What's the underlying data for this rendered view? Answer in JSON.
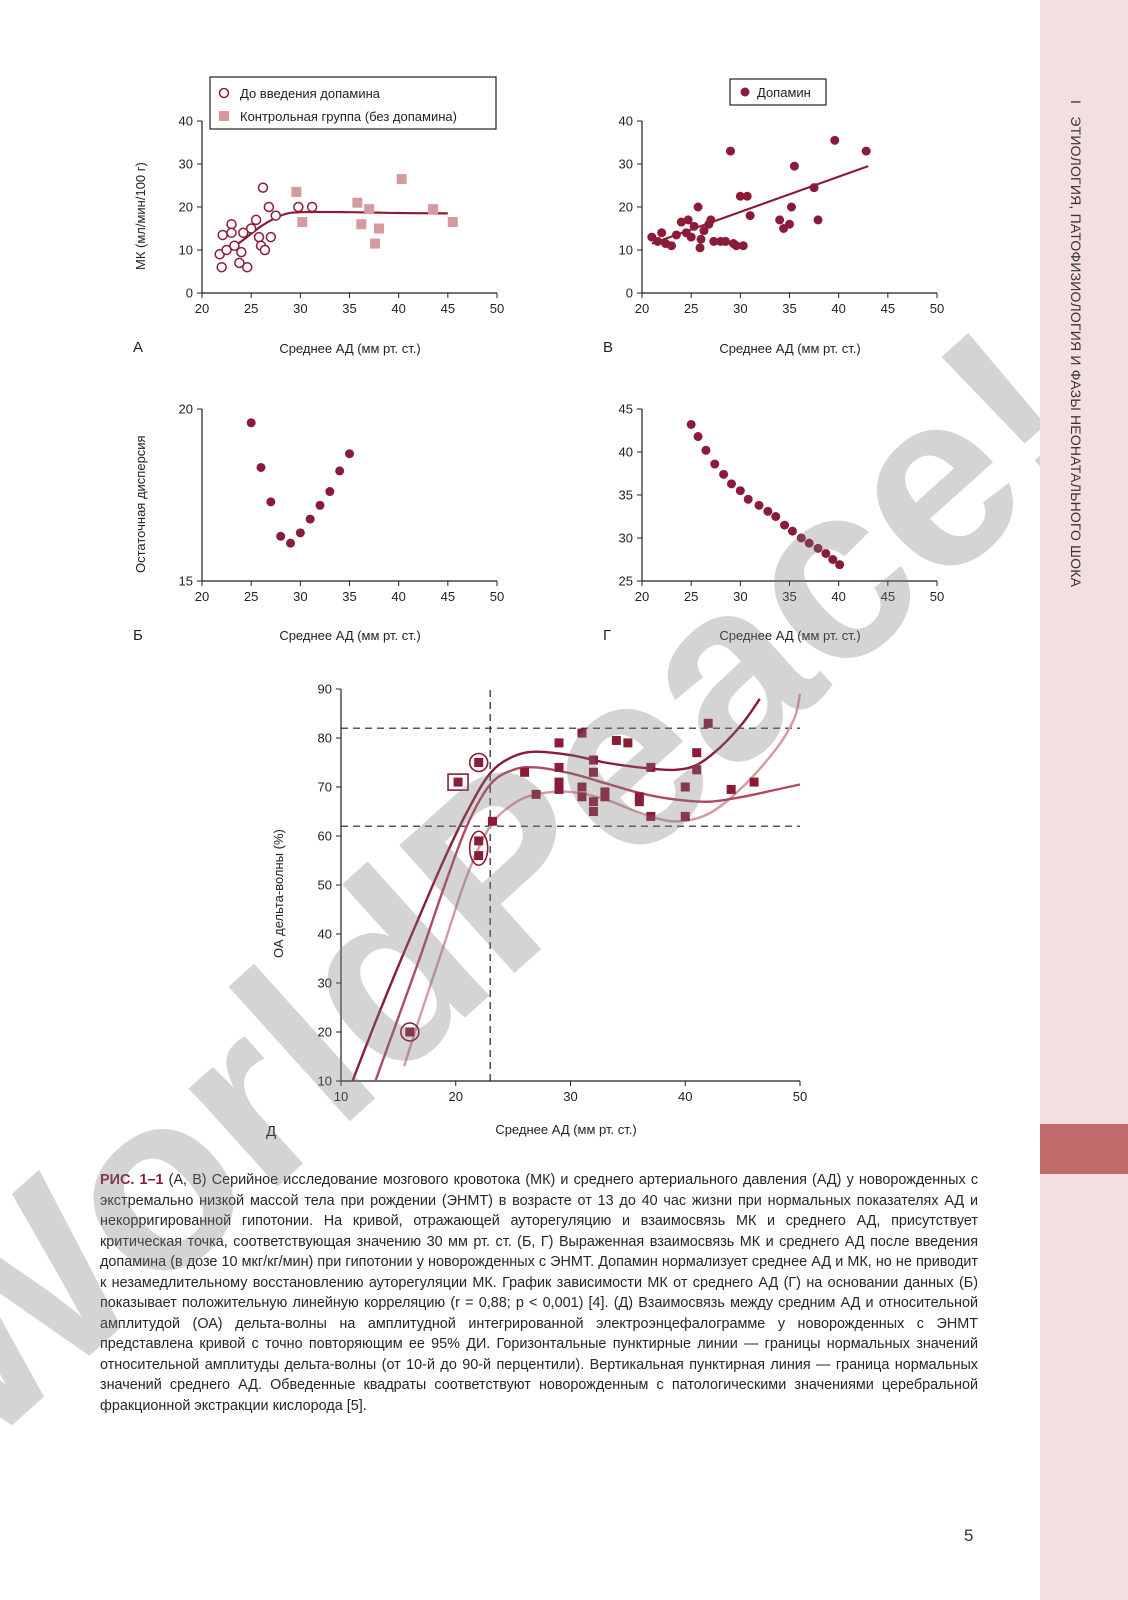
{
  "section_header": {
    "number": "I",
    "title": "ЭТИОЛОГИЯ, ПАТОФИЗИОЛОГИЯ И ФАЗЫ НЕОНАТАЛЬНОГО ШОКА"
  },
  "watermark": "WorldPeace!",
  "colors": {
    "dark": "#8a1c37",
    "mid": "#b04a5c",
    "light": "#d49a9e",
    "accent_tab": "#c06a6c",
    "sidebar": "#f3dfe0"
  },
  "panels": {
    "A": {
      "letter": "А",
      "ylabel": "МК (мл/мин/100 г)",
      "xlabel": "Среднее АД (мм рт. ст.)"
    },
    "B": {
      "letter": "В",
      "xlabel": "Среднее АД (мм рт. ст.)"
    },
    "Б": {
      "letter": "Б",
      "ylabel": "Остаточная дисперсия",
      "xlabel": "Среднее АД (мм рт. ст.)"
    },
    "Г": {
      "letter": "Г",
      "xlabel": "Среднее АД (мм рт. ст.)"
    },
    "Д": {
      "letter": "Д",
      "ylabel": "ОА дельта-волны (%)",
      "xlabel": "Среднее АД (мм рт. ст.)"
    }
  },
  "chart_data": [
    {
      "panel": "А",
      "type": "scatter",
      "xlim": [
        20,
        50
      ],
      "ylim": [
        0,
        40
      ],
      "xticks": [
        20,
        25,
        30,
        35,
        40,
        45,
        50
      ],
      "yticks": [
        0,
        10,
        20,
        30,
        40
      ],
      "xlabel": "Среднее АД (мм рт. ст.)",
      "ylabel": "МК (мл/мин/100 г)",
      "legend": "top-left",
      "series": [
        {
          "name": "До введения допамина",
          "marker": "open-circle",
          "points": [
            [
              21.8,
              9
            ],
            [
              22,
              6
            ],
            [
              22.1,
              13.5
            ],
            [
              22.5,
              10
            ],
            [
              23,
              16
            ],
            [
              23,
              14
            ],
            [
              23.3,
              11
            ],
            [
              23.8,
              7
            ],
            [
              24,
              9.5
            ],
            [
              24.2,
              14
            ],
            [
              24.6,
              6
            ],
            [
              25,
              15
            ],
            [
              25.5,
              17
            ],
            [
              25.8,
              13
            ],
            [
              26,
              11
            ],
            [
              26.2,
              24.5
            ],
            [
              26.4,
              10
            ],
            [
              26.8,
              20
            ],
            [
              27,
              13
            ],
            [
              27.5,
              18
            ],
            [
              29.8,
              20
            ],
            [
              31.2,
              20
            ]
          ]
        },
        {
          "name": "Контрольная группа (без допамина)",
          "marker": "filled-square",
          "points": [
            [
              29.6,
              23.5
            ],
            [
              30.2,
              16.5
            ],
            [
              35.8,
              21
            ],
            [
              36.2,
              16
            ],
            [
              37,
              19.5
            ],
            [
              37.6,
              11.5
            ],
            [
              38,
              15
            ],
            [
              40.3,
              26.5
            ],
            [
              43.5,
              19.5
            ],
            [
              45.5,
              16.5
            ]
          ]
        }
      ],
      "fit": [
        [
          22,
          9
        ],
        [
          24,
          12
        ],
        [
          26,
          15.5
        ],
        [
          28,
          18
        ],
        [
          30,
          18.8
        ],
        [
          35,
          18.8
        ],
        [
          40,
          18.6
        ],
        [
          45,
          18.5
        ]
      ]
    },
    {
      "panel": "В",
      "type": "scatter",
      "xlim": [
        20,
        50
      ],
      "ylim": [
        0,
        40
      ],
      "xticks": [
        20,
        25,
        30,
        35,
        40,
        45,
        50
      ],
      "yticks": [
        0,
        10,
        20,
        30,
        40
      ],
      "xlabel": "Среднее АД (мм рт. ст.)",
      "legend": "top-center",
      "series": [
        {
          "name": "Допамин",
          "marker": "filled-circle",
          "points": [
            [
              21,
              13
            ],
            [
              21.6,
              12
            ],
            [
              22,
              14
            ],
            [
              22.4,
              11.5
            ],
            [
              23,
              11
            ],
            [
              23.5,
              13.5
            ],
            [
              24,
              16.5
            ],
            [
              24.5,
              14
            ],
            [
              24.7,
              17
            ],
            [
              25,
              13
            ],
            [
              25.3,
              15.5
            ],
            [
              25.7,
              20
            ],
            [
              25.9,
              10.5
            ],
            [
              26,
              12.5
            ],
            [
              26.3,
              14.5
            ],
            [
              26.8,
              16
            ],
            [
              27,
              17
            ],
            [
              27.3,
              12
            ],
            [
              28,
              12
            ],
            [
              28.5,
              12
            ],
            [
              29,
              33
            ],
            [
              29.3,
              11.5
            ],
            [
              29.6,
              11
            ],
            [
              30,
              22.5
            ],
            [
              30.3,
              11
            ],
            [
              30.7,
              22.5
            ],
            [
              31,
              18
            ],
            [
              34,
              17
            ],
            [
              34.4,
              15
            ],
            [
              35,
              16
            ],
            [
              35.2,
              20
            ],
            [
              35.5,
              29.5
            ],
            [
              37.5,
              24.5
            ],
            [
              37.9,
              17
            ],
            [
              39.6,
              35.5
            ],
            [
              42.8,
              33
            ]
          ]
        }
      ],
      "fit": [
        [
          21,
          11.5
        ],
        [
          43,
          29.5
        ]
      ]
    },
    {
      "panel": "Б",
      "type": "scatter",
      "xlim": [
        20,
        50
      ],
      "ylim": [
        15,
        20
      ],
      "xticks": [
        20,
        25,
        30,
        35,
        40,
        45,
        50
      ],
      "yticks": [
        15,
        20
      ],
      "xlabel": "Среднее АД (мм рт. ст.)",
      "ylabel": "Остаточная дисперсия",
      "series": [
        {
          "name": "",
          "marker": "filled-circle",
          "points": [
            [
              25,
              19.6
            ],
            [
              26,
              18.3
            ],
            [
              27,
              17.3
            ],
            [
              28,
              16.3
            ],
            [
              29,
              16.1
            ],
            [
              30,
              16.4
            ],
            [
              31,
              16.8
            ],
            [
              32,
              17.2
            ],
            [
              33,
              17.6
            ],
            [
              34,
              18.2
            ],
            [
              35,
              18.7
            ]
          ]
        }
      ]
    },
    {
      "panel": "Г",
      "type": "scatter",
      "xlim": [
        20,
        50
      ],
      "ylim": [
        25,
        45
      ],
      "xticks": [
        20,
        25,
        30,
        35,
        40,
        45,
        50
      ],
      "yticks": [
        25,
        30,
        35,
        40,
        45
      ],
      "xlabel": "Среднее АД (мм рт. ст.)",
      "series": [
        {
          "name": "",
          "marker": "filled-circle",
          "points": [
            [
              25,
              43.2
            ],
            [
              25.7,
              41.8
            ],
            [
              26.5,
              40.2
            ],
            [
              27.4,
              38.6
            ],
            [
              28.3,
              37.4
            ],
            [
              29.1,
              36.3
            ],
            [
              30,
              35.5
            ],
            [
              30.8,
              34.5
            ],
            [
              31.9,
              33.8
            ],
            [
              32.8,
              33.1
            ],
            [
              33.6,
              32.5
            ],
            [
              34.5,
              31.5
            ],
            [
              35.3,
              30.8
            ],
            [
              36.2,
              30
            ],
            [
              37,
              29.4
            ],
            [
              37.9,
              28.8
            ],
            [
              38.7,
              28.2
            ],
            [
              39.4,
              27.5
            ],
            [
              40.1,
              26.9
            ]
          ]
        }
      ]
    },
    {
      "panel": "Д",
      "type": "scatter",
      "xlim": [
        10,
        50
      ],
      "ylim": [
        10,
        90
      ],
      "xticks": [
        10,
        20,
        30,
        40,
        50
      ],
      "yticks": [
        10,
        20,
        30,
        40,
        50,
        60,
        70,
        80,
        90
      ],
      "xlabel": "Среднее АД (мм рт. ст.)",
      "ylabel": "ОА дельта-волны (%)",
      "reference_lines": {
        "horizontal": [
          62,
          82
        ],
        "vertical": [
          23
        ]
      },
      "series": [
        {
          "name": "",
          "marker": "filled-square",
          "points": [
            [
              16,
              20
            ],
            [
              20.2,
              71
            ],
            [
              22,
              75
            ],
            [
              22,
              59
            ],
            [
              22,
              56
            ],
            [
              23.2,
              63
            ],
            [
              26,
              73
            ],
            [
              27,
              68.5
            ],
            [
              29,
              79
            ],
            [
              29,
              74
            ],
            [
              29,
              71
            ],
            [
              29,
              69.5
            ],
            [
              31,
              81
            ],
            [
              31,
              70
            ],
            [
              31,
              68
            ],
            [
              32,
              75.5
            ],
            [
              32,
              73
            ],
            [
              32,
              67
            ],
            [
              32,
              65
            ],
            [
              33,
              69
            ],
            [
              33,
              68
            ],
            [
              34,
              79.5
            ],
            [
              35,
              79
            ],
            [
              36,
              68
            ],
            [
              36,
              67
            ],
            [
              37,
              74
            ],
            [
              37,
              64
            ],
            [
              40,
              70
            ],
            [
              40,
              64
            ],
            [
              41,
              77
            ],
            [
              41,
              73.5
            ],
            [
              42,
              83
            ],
            [
              44,
              69.5
            ],
            [
              46,
              71
            ]
          ]
        }
      ],
      "highlighted": [
        [
          16,
          20
        ],
        [
          20.2,
          71
        ],
        [
          22,
          75
        ],
        [
          22,
          57.5
        ]
      ],
      "curves": {
        "mean": [
          [
            13,
            10
          ],
          [
            15,
            23
          ],
          [
            17,
            36
          ],
          [
            19,
            49.7
          ],
          [
            21,
            62.2
          ],
          [
            23,
            70.5
          ],
          [
            25,
            73.5
          ],
          [
            27,
            74
          ],
          [
            30,
            72.8
          ],
          [
            33,
            70.8
          ],
          [
            36,
            68.8
          ],
          [
            39,
            67.5
          ],
          [
            42,
            67
          ],
          [
            45,
            68
          ],
          [
            48,
            69.5
          ],
          [
            50,
            70.5
          ]
        ],
        "upper": [
          [
            11,
            10
          ],
          [
            13,
            22
          ],
          [
            15,
            33.5
          ],
          [
            17,
            44.5
          ],
          [
            19,
            55.3
          ],
          [
            21,
            65
          ],
          [
            23,
            72.8
          ],
          [
            25,
            76.2
          ],
          [
            27,
            77.2
          ],
          [
            30,
            76.5
          ],
          [
            33,
            75
          ],
          [
            36,
            74
          ],
          [
            39,
            73.5
          ],
          [
            41,
            74.5
          ],
          [
            43,
            78
          ],
          [
            45,
            83
          ],
          [
            46.5,
            88
          ]
        ],
        "lower": [
          [
            15.5,
            13
          ],
          [
            17,
            24
          ],
          [
            19,
            38
          ],
          [
            21,
            52
          ],
          [
            23,
            62
          ],
          [
            25,
            66.5
          ],
          [
            27,
            68.5
          ],
          [
            30,
            69
          ],
          [
            33,
            67.5
          ],
          [
            36,
            64.8
          ],
          [
            39,
            63
          ],
          [
            42,
            64.5
          ],
          [
            45,
            70
          ],
          [
            48,
            78
          ],
          [
            49.5,
            84
          ],
          [
            50,
            89
          ]
        ]
      }
    }
  ],
  "caption": {
    "label": "РИС. 1–1",
    "text": "(А, В) Серийное исследование мозгового кровотока (МК) и среднего артериального давления (АД) у новорожденных с экстремально низкой массой тела при рождении (ЭНМТ) в возрасте от 13 до 40 час жизни при нормальных показателях АД и некорригированной гипотонии. На кривой, отражающей ауторегуляцию и взаимосвязь МК и среднего АД, присутствует критическая точка, соответствующая значению 30 мм рт. ст. (Б, Г) Выраженная взаимосвязь МК и среднего АД после введения допамина (в дозе 10 мкг/кг/мин) при гипотонии у новорожденных с ЭНМТ. Допамин нормализует среднее АД и МК, но не приводит к незамедлительному восстановлению ауторегуляции МК. График зависимости МК от среднего АД (Г) на основании данных (Б) показывает положительную линейную корреляцию (r = 0,88; p < 0,001) [4]. (Д) Взаимосвязь между средним АД и относительной амплитудой (ОА) дельта-волны на амплитудной интегрированной электроэнцефалограмме у новорожденных с ЭНМТ представлена кривой с точно повторяющим ее 95% ДИ. Горизонтальные пунктирные линии — границы нормальных значений относительной амплитуды дельта-волны (от 10-й до 90-й перцентили). Вертикальная пунктирная линия — граница нормальных значений среднего АД. Обведенные квадраты соответствуют новорожденным с патологическими значениями церебральной фракционной экстракции кислорода [5]."
  },
  "page_number": "5"
}
